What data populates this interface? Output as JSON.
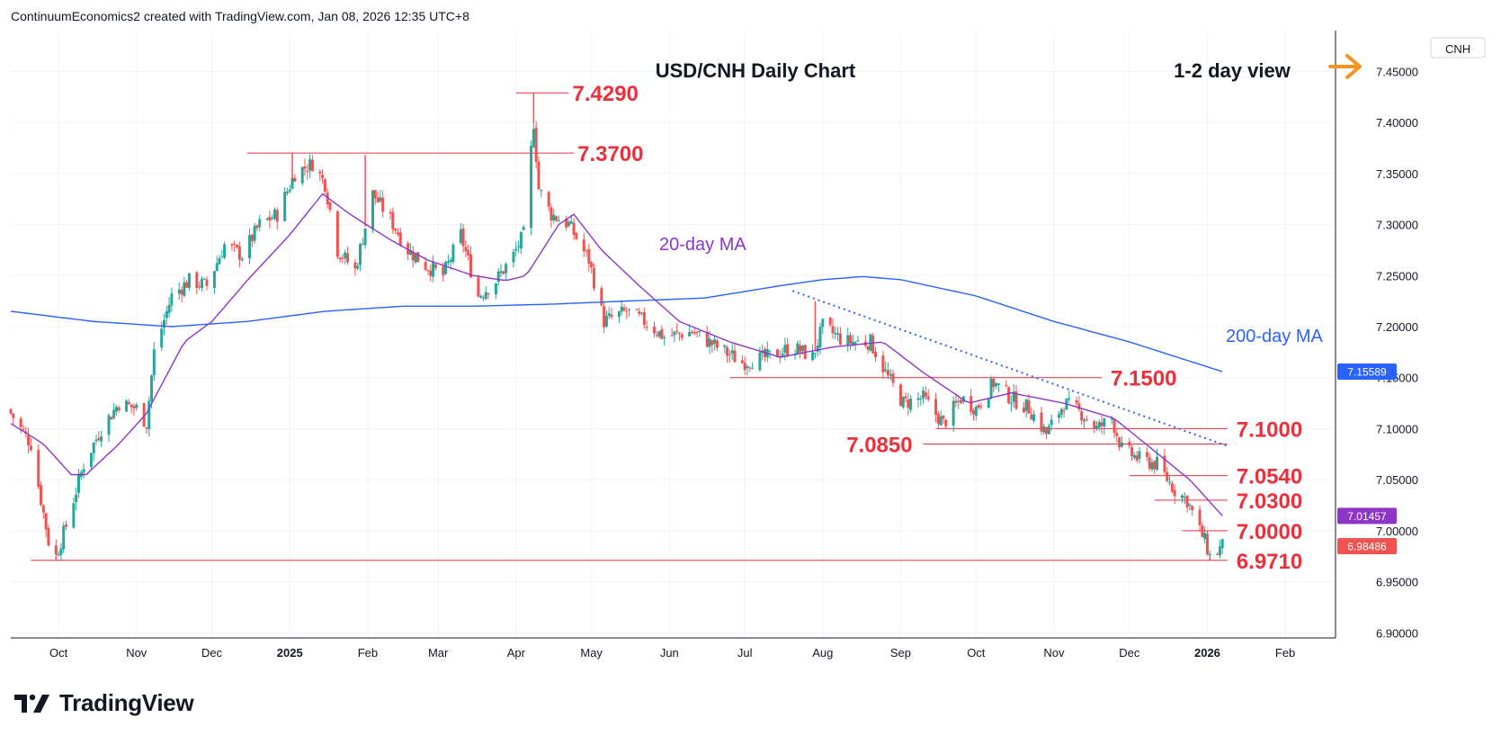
{
  "header": {
    "created_text": "ContinuumEconomics2 created with TradingView.com, Jan 08, 2026 12:35 UTC+8"
  },
  "brand": {
    "name": "TradingView",
    "logo_icon": "tradingview-logo-icon"
  },
  "colors": {
    "up": "#26a69a",
    "down": "#ef5350",
    "ma20": "#8e35c8",
    "ma200": "#2962ff",
    "level": "#ef2e3b",
    "arrow": "#f7931e",
    "trend": "#2962ff"
  },
  "chart_data": {
    "type": "candlestick",
    "title": "USD/CNH Daily Chart",
    "view_label": "1-2 day view",
    "view_icon": "arrow-right-icon",
    "symbol": "CNH",
    "x_ticks": [
      {
        "label": "Oct",
        "date": "2024-10-01",
        "bold": false
      },
      {
        "label": "Nov",
        "date": "2024-11-01",
        "bold": false
      },
      {
        "label": "Dec",
        "date": "2024-12-01",
        "bold": false
      },
      {
        "label": "2025",
        "date": "2025-01-01",
        "bold": true
      },
      {
        "label": "Feb",
        "date": "2025-02-01",
        "bold": false
      },
      {
        "label": "Mar",
        "date": "2025-03-01",
        "bold": false
      },
      {
        "label": "Apr",
        "date": "2025-04-01",
        "bold": false
      },
      {
        "label": "May",
        "date": "2025-05-01",
        "bold": false
      },
      {
        "label": "Jun",
        "date": "2025-06-01",
        "bold": false
      },
      {
        "label": "Jul",
        "date": "2025-07-01",
        "bold": false
      },
      {
        "label": "Aug",
        "date": "2025-08-01",
        "bold": false
      },
      {
        "label": "Sep",
        "date": "2025-09-01",
        "bold": false
      },
      {
        "label": "Oct",
        "date": "2025-10-01",
        "bold": false
      },
      {
        "label": "Nov",
        "date": "2025-11-01",
        "bold": false
      },
      {
        "label": "Dec",
        "date": "2025-12-01",
        "bold": false
      },
      {
        "label": "2026",
        "date": "2026-01-01",
        "bold": true
      },
      {
        "label": "Feb",
        "date": "2026-02-01",
        "bold": false
      }
    ],
    "x_range": [
      "2024-09-12",
      "2026-02-21"
    ],
    "y_ticks": [
      "7.45000",
      "7.40000",
      "7.35000",
      "7.30000",
      "7.25000",
      "7.20000",
      "7.15000",
      "7.10000",
      "7.05000",
      "7.00000",
      "6.95000",
      "6.90000"
    ],
    "ylim": [
      6.895,
      7.49
    ],
    "grid": true,
    "close_anchors": [
      [
        "2024-09-12",
        7.115
      ],
      [
        "2024-09-20",
        7.085
      ],
      [
        "2024-09-27",
        6.99
      ],
      [
        "2024-09-30",
        6.975
      ],
      [
        "2024-10-04",
        7.005
      ],
      [
        "2024-10-11",
        7.065
      ],
      [
        "2024-10-18",
        7.1
      ],
      [
        "2024-10-25",
        7.125
      ],
      [
        "2024-11-01",
        7.12
      ],
      [
        "2024-11-05",
        7.105
      ],
      [
        "2024-11-08",
        7.175
      ],
      [
        "2024-11-15",
        7.23
      ],
      [
        "2024-11-22",
        7.245
      ],
      [
        "2024-11-29",
        7.24
      ],
      [
        "2024-12-06",
        7.28
      ],
      [
        "2024-12-13",
        7.27
      ],
      [
        "2024-12-20",
        7.3
      ],
      [
        "2024-12-27",
        7.31
      ],
      [
        "2025-01-03",
        7.35
      ],
      [
        "2025-01-10",
        7.36
      ],
      [
        "2025-01-15",
        7.34
      ],
      [
        "2025-01-20",
        7.275
      ],
      [
        "2025-01-27",
        7.255
      ],
      [
        "2025-02-03",
        7.33
      ],
      [
        "2025-02-10",
        7.305
      ],
      [
        "2025-02-17",
        7.275
      ],
      [
        "2025-02-24",
        7.26
      ],
      [
        "2025-03-03",
        7.25
      ],
      [
        "2025-03-10",
        7.29
      ],
      [
        "2025-03-17",
        7.23
      ],
      [
        "2025-03-24",
        7.245
      ],
      [
        "2025-03-31",
        7.27
      ],
      [
        "2025-04-04",
        7.29
      ],
      [
        "2025-04-08",
        7.4
      ],
      [
        "2025-04-10",
        7.335
      ],
      [
        "2025-04-15",
        7.31
      ],
      [
        "2025-04-22",
        7.3
      ],
      [
        "2025-04-30",
        7.265
      ],
      [
        "2025-05-06",
        7.205
      ],
      [
        "2025-05-15",
        7.215
      ],
      [
        "2025-05-22",
        7.205
      ],
      [
        "2025-05-30",
        7.19
      ],
      [
        "2025-06-10",
        7.195
      ],
      [
        "2025-06-20",
        7.18
      ],
      [
        "2025-06-30",
        7.165
      ],
      [
        "2025-07-10",
        7.17
      ],
      [
        "2025-07-20",
        7.18
      ],
      [
        "2025-07-28",
        7.17
      ],
      [
        "2025-08-01",
        7.2
      ],
      [
        "2025-08-10",
        7.185
      ],
      [
        "2025-08-20",
        7.185
      ],
      [
        "2025-08-27",
        7.15
      ],
      [
        "2025-09-02",
        7.125
      ],
      [
        "2025-09-10",
        7.13
      ],
      [
        "2025-09-18",
        7.105
      ],
      [
        "2025-09-25",
        7.13
      ],
      [
        "2025-10-01",
        7.12
      ],
      [
        "2025-10-08",
        7.145
      ],
      [
        "2025-10-15",
        7.13
      ],
      [
        "2025-10-22",
        7.12
      ],
      [
        "2025-10-29",
        7.095
      ],
      [
        "2025-11-05",
        7.125
      ],
      [
        "2025-11-12",
        7.115
      ],
      [
        "2025-11-18",
        7.1
      ],
      [
        "2025-11-24",
        7.11
      ],
      [
        "2025-11-28",
        7.08
      ],
      [
        "2025-12-05",
        7.07
      ],
      [
        "2025-12-12",
        7.065
      ],
      [
        "2025-12-19",
        7.04
      ],
      [
        "2025-12-24",
        7.03
      ],
      [
        "2025-12-29",
        7.0
      ],
      [
        "2025-12-31",
        6.99
      ],
      [
        "2026-01-02",
        6.975
      ],
      [
        "2026-01-05",
        6.98
      ],
      [
        "2026-01-07",
        6.985
      ]
    ],
    "ma20_anchors": [
      [
        "2024-09-12",
        7.105
      ],
      [
        "2024-09-25",
        7.085
      ],
      [
        "2024-10-06",
        7.055
      ],
      [
        "2024-10-12",
        7.055
      ],
      [
        "2024-10-25",
        7.085
      ],
      [
        "2024-11-05",
        7.115
      ],
      [
        "2024-11-20",
        7.185
      ],
      [
        "2024-12-01",
        7.205
      ],
      [
        "2024-12-15",
        7.245
      ],
      [
        "2025-01-01",
        7.29
      ],
      [
        "2025-01-14",
        7.33
      ],
      [
        "2025-01-25",
        7.31
      ],
      [
        "2025-02-10",
        7.285
      ],
      [
        "2025-02-25",
        7.265
      ],
      [
        "2025-03-15",
        7.25
      ],
      [
        "2025-03-28",
        7.245
      ],
      [
        "2025-04-05",
        7.25
      ],
      [
        "2025-04-18",
        7.3
      ],
      [
        "2025-04-24",
        7.31
      ],
      [
        "2025-05-05",
        7.275
      ],
      [
        "2025-05-20",
        7.24
      ],
      [
        "2025-06-05",
        7.205
      ],
      [
        "2025-06-25",
        7.185
      ],
      [
        "2025-07-15",
        7.17
      ],
      [
        "2025-08-05",
        7.18
      ],
      [
        "2025-08-25",
        7.185
      ],
      [
        "2025-09-10",
        7.155
      ],
      [
        "2025-09-28",
        7.125
      ],
      [
        "2025-10-15",
        7.135
      ],
      [
        "2025-11-05",
        7.125
      ],
      [
        "2025-11-25",
        7.11
      ],
      [
        "2025-12-10",
        7.08
      ],
      [
        "2025-12-25",
        7.05
      ],
      [
        "2026-01-07",
        7.0146
      ]
    ],
    "ma200_anchors": [
      [
        "2024-09-12",
        7.215
      ],
      [
        "2024-10-15",
        7.205
      ],
      [
        "2024-11-15",
        7.2
      ],
      [
        "2024-12-15",
        7.205
      ],
      [
        "2025-01-15",
        7.215
      ],
      [
        "2025-02-15",
        7.22
      ],
      [
        "2025-03-15",
        7.22
      ],
      [
        "2025-04-15",
        7.222
      ],
      [
        "2025-05-15",
        7.225
      ],
      [
        "2025-06-15",
        7.228
      ],
      [
        "2025-07-15",
        7.24
      ],
      [
        "2025-08-01",
        7.246
      ],
      [
        "2025-08-17",
        7.249
      ],
      [
        "2025-09-01",
        7.246
      ],
      [
        "2025-10-01",
        7.23
      ],
      [
        "2025-11-01",
        7.205
      ],
      [
        "2025-12-01",
        7.185
      ],
      [
        "2026-01-07",
        7.15589
      ]
    ],
    "series": [
      {
        "name": "20-day MA",
        "color_key": "ma20",
        "last": 7.01457,
        "last_label": "7.01457"
      },
      {
        "name": "200-day MA",
        "color_key": "ma200",
        "last": 7.15589,
        "last_label": "7.15589"
      }
    ],
    "last_price": {
      "value": 6.98486,
      "label": "6.98486"
    },
    "levels": [
      {
        "label": "7.4290",
        "value": 7.429,
        "from": "2025-04-01",
        "to": "2025-04-22"
      },
      {
        "label": "7.3700",
        "value": 7.37,
        "from": "2024-12-15",
        "to": "2025-04-24"
      },
      {
        "label": "7.1500",
        "value": 7.15,
        "from": "2025-06-25",
        "to": "2025-11-20"
      },
      {
        "label": "7.1000",
        "value": 7.1,
        "from": "2025-09-15",
        "to": "2026-01-09"
      },
      {
        "label": "7.0850",
        "value": 7.085,
        "from": "2025-09-10",
        "to": "2026-01-09"
      },
      {
        "label": "7.0540",
        "value": 7.054,
        "from": "2025-12-01",
        "to": "2026-01-09"
      },
      {
        "label": "7.0300",
        "value": 7.03,
        "from": "2025-12-11",
        "to": "2026-01-09"
      },
      {
        "label": "7.0000",
        "value": 7.0,
        "from": "2025-12-22",
        "to": "2026-01-09"
      },
      {
        "label": "6.9710",
        "value": 6.971,
        "from": "2024-09-20",
        "to": "2026-01-09"
      }
    ],
    "trendline": {
      "from": [
        "2025-07-20",
        7.235
      ],
      "to": [
        "2026-01-09",
        7.083
      ],
      "style": "dotted"
    }
  }
}
